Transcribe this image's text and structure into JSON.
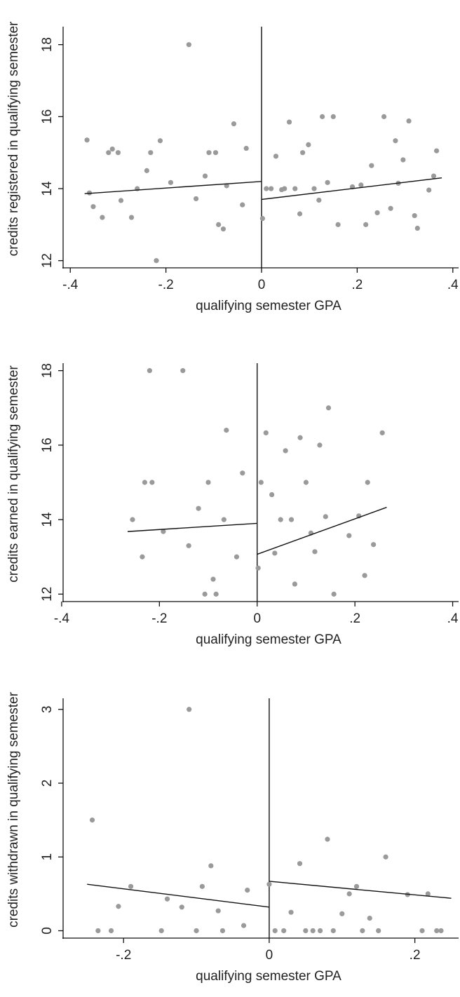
{
  "chart_data": [
    {
      "type": "scatter",
      "xlabel": "qualifying semester GPA",
      "ylabel": "credits registered in qualifying semester",
      "xlim": [
        -0.415,
        0.415
      ],
      "ylim": [
        11.8,
        18.5
      ],
      "xticks": [
        -0.4,
        -0.2,
        0,
        0.2,
        0.4
      ],
      "xtick_labels": [
        "-.4",
        "-.2",
        "0",
        ".2",
        ".4"
      ],
      "yticks": [
        12,
        14,
        16,
        18
      ],
      "ytick_labels": [
        "12",
        "14",
        "16",
        "18"
      ],
      "cutoff": 0,
      "grid": false,
      "points": [
        [
          -0.365,
          15.35
        ],
        [
          -0.36,
          13.88
        ],
        [
          -0.352,
          13.5
        ],
        [
          -0.333,
          13.2
        ],
        [
          -0.32,
          15.0
        ],
        [
          -0.312,
          15.1
        ],
        [
          -0.3,
          15.0
        ],
        [
          -0.294,
          13.67
        ],
        [
          -0.272,
          13.2
        ],
        [
          -0.26,
          14.0
        ],
        [
          -0.24,
          14.5
        ],
        [
          -0.232,
          15.0
        ],
        [
          -0.22,
          12.0
        ],
        [
          -0.212,
          15.33
        ],
        [
          -0.19,
          14.17
        ],
        [
          -0.152,
          18.0
        ],
        [
          -0.137,
          13.72
        ],
        [
          -0.118,
          14.35
        ],
        [
          -0.11,
          15.0
        ],
        [
          -0.096,
          15.0
        ],
        [
          -0.09,
          13.0
        ],
        [
          -0.08,
          12.88
        ],
        [
          -0.073,
          14.08
        ],
        [
          -0.058,
          15.8
        ],
        [
          -0.04,
          13.55
        ],
        [
          -0.032,
          15.12
        ],
        [
          0.002,
          13.17
        ],
        [
          0.01,
          14.0
        ],
        [
          0.02,
          14.0
        ],
        [
          0.03,
          14.9
        ],
        [
          0.042,
          13.97
        ],
        [
          0.048,
          14.0
        ],
        [
          0.058,
          15.85
        ],
        [
          0.07,
          14.0
        ],
        [
          0.08,
          13.3
        ],
        [
          0.086,
          15.0
        ],
        [
          0.098,
          15.22
        ],
        [
          0.11,
          14.0
        ],
        [
          0.12,
          13.68
        ],
        [
          0.127,
          16.0
        ],
        [
          0.138,
          14.17
        ],
        [
          0.15,
          16.0
        ],
        [
          0.16,
          13.0
        ],
        [
          0.19,
          14.05
        ],
        [
          0.208,
          14.1
        ],
        [
          0.218,
          13.0
        ],
        [
          0.23,
          14.64
        ],
        [
          0.242,
          13.33
        ],
        [
          0.256,
          16.0
        ],
        [
          0.27,
          13.45
        ],
        [
          0.28,
          15.33
        ],
        [
          0.286,
          14.15
        ],
        [
          0.296,
          14.8
        ],
        [
          0.308,
          15.88
        ],
        [
          0.32,
          13.25
        ],
        [
          0.326,
          12.9
        ],
        [
          0.35,
          13.96
        ],
        [
          0.36,
          14.35
        ],
        [
          0.366,
          15.05
        ]
      ],
      "fit_left": [
        [
          -0.37,
          13.86
        ],
        [
          0,
          14.2
        ]
      ],
      "fit_right": [
        [
          0,
          13.7
        ],
        [
          0.377,
          14.3
        ]
      ]
    },
    {
      "type": "scatter",
      "xlabel": "qualifying semester GPA",
      "ylabel": "credits earned in qualifying semester",
      "xlim": [
        -0.397,
        0.415
      ],
      "ylim": [
        11.8,
        18.2
      ],
      "xticks": [
        -0.4,
        -0.2,
        0,
        0.2,
        0.4
      ],
      "xtick_labels": [
        "-.4",
        "-.2",
        "0",
        ".2",
        ".4"
      ],
      "yticks": [
        12,
        14,
        16,
        18
      ],
      "ytick_labels": [
        "12",
        "14",
        "16",
        "18"
      ],
      "cutoff": 0,
      "grid": false,
      "points": [
        [
          -0.255,
          14.0
        ],
        [
          -0.235,
          13.0
        ],
        [
          -0.23,
          15.0
        ],
        [
          -0.22,
          18.0
        ],
        [
          -0.215,
          15.0
        ],
        [
          -0.192,
          13.68
        ],
        [
          -0.152,
          18.0
        ],
        [
          -0.14,
          13.3
        ],
        [
          -0.12,
          14.3
        ],
        [
          -0.1,
          15.0
        ],
        [
          -0.107,
          12.0
        ],
        [
          -0.09,
          12.4
        ],
        [
          -0.084,
          12.0
        ],
        [
          -0.068,
          14.0
        ],
        [
          -0.063,
          16.4
        ],
        [
          -0.042,
          13.0
        ],
        [
          -0.03,
          15.25
        ],
        [
          0.002,
          12.7
        ],
        [
          0.008,
          15.0
        ],
        [
          0.018,
          16.33
        ],
        [
          0.03,
          14.67
        ],
        [
          0.036,
          13.1
        ],
        [
          0.048,
          14.0
        ],
        [
          0.058,
          15.85
        ],
        [
          0.07,
          14.0
        ],
        [
          0.077,
          12.27
        ],
        [
          0.088,
          16.2
        ],
        [
          0.1,
          15.0
        ],
        [
          0.11,
          13.64
        ],
        [
          0.118,
          13.14
        ],
        [
          0.128,
          16.0
        ],
        [
          0.14,
          14.08
        ],
        [
          0.146,
          17.0
        ],
        [
          0.157,
          12.0
        ],
        [
          0.188,
          13.57
        ],
        [
          0.208,
          14.1
        ],
        [
          0.22,
          12.5
        ],
        [
          0.226,
          15.0
        ],
        [
          0.238,
          13.33
        ],
        [
          0.256,
          16.33
        ]
      ],
      "fit_left": [
        [
          -0.265,
          13.68
        ],
        [
          0,
          13.9
        ]
      ],
      "fit_right": [
        [
          0,
          13.07
        ],
        [
          0.265,
          14.33
        ]
      ]
    },
    {
      "type": "scatter",
      "xlabel": "qualifying semester GPA",
      "ylabel": "credits withdrawn in qualifying semester",
      "xlim": [
        -0.283,
        0.262
      ],
      "ylim": [
        -0.1,
        3.15
      ],
      "xticks": [
        -0.2,
        0,
        0.2
      ],
      "xtick_labels": [
        "-.2",
        "0",
        ".2"
      ],
      "yticks": [
        0,
        1,
        2,
        3
      ],
      "ytick_labels": [
        "0",
        "1",
        "2",
        "3"
      ],
      "cutoff": 0,
      "grid": false,
      "points": [
        [
          -0.243,
          1.5
        ],
        [
          -0.235,
          0.0
        ],
        [
          -0.217,
          0.0
        ],
        [
          -0.207,
          0.33
        ],
        [
          -0.19,
          0.6
        ],
        [
          -0.148,
          0.0
        ],
        [
          -0.14,
          0.43
        ],
        [
          -0.12,
          0.32
        ],
        [
          -0.11,
          3.0
        ],
        [
          -0.1,
          0.0
        ],
        [
          -0.092,
          0.6
        ],
        [
          -0.08,
          0.88
        ],
        [
          -0.07,
          0.27
        ],
        [
          -0.064,
          0.0
        ],
        [
          -0.03,
          0.55
        ],
        [
          -0.035,
          0.07
        ],
        [
          0.0,
          0.63
        ],
        [
          0.008,
          0.0
        ],
        [
          0.02,
          0.0
        ],
        [
          0.03,
          0.25
        ],
        [
          0.042,
          0.91
        ],
        [
          0.05,
          0.0
        ],
        [
          0.06,
          0.0
        ],
        [
          0.07,
          0.0
        ],
        [
          0.08,
          1.24
        ],
        [
          0.088,
          0.0
        ],
        [
          0.1,
          0.23
        ],
        [
          0.11,
          0.5
        ],
        [
          0.12,
          0.6
        ],
        [
          0.128,
          0.0
        ],
        [
          0.138,
          0.17
        ],
        [
          0.15,
          0.0
        ],
        [
          0.16,
          1.0
        ],
        [
          0.19,
          0.49
        ],
        [
          0.21,
          0.0
        ],
        [
          0.218,
          0.5
        ],
        [
          0.23,
          0.0
        ],
        [
          0.236,
          0.0
        ]
      ],
      "fit_left": [
        [
          -0.25,
          0.63
        ],
        [
          0,
          0.32
        ]
      ],
      "fit_right": [
        [
          0,
          0.67
        ],
        [
          0.25,
          0.44
        ]
      ]
    }
  ]
}
